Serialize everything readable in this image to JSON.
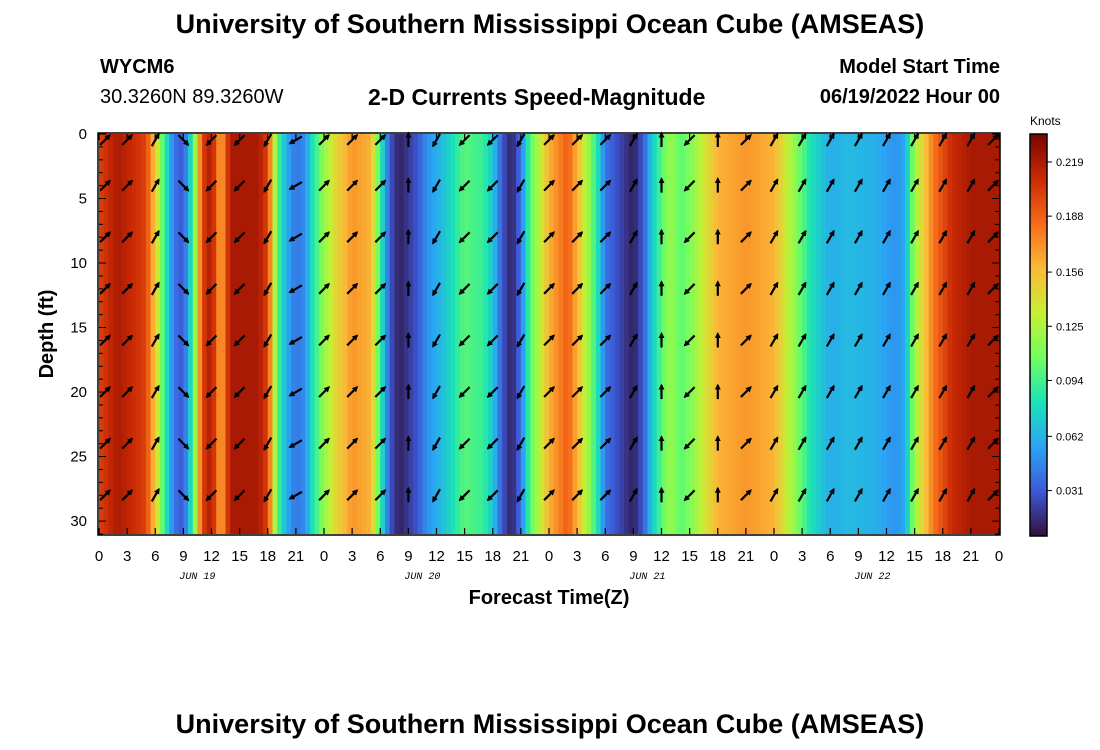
{
  "header": {
    "title": "University of Southern Mississippi Ocean Cube (AMSEAS)",
    "station": "WYCM6",
    "coords": "30.3260N  89.3260W",
    "subtitle": "2-D Currents Speed-Magnitude",
    "model_start_label": "Model Start Time",
    "model_start_value": "06/19/2022 Hour 00"
  },
  "footer": {
    "title": "University of Southern Mississippi Ocean Cube (AMSEAS)"
  },
  "colors": {
    "ramp": [
      "#30123b",
      "#3e58d8",
      "#2ba4f5",
      "#1ae4b6",
      "#72fe5e",
      "#c8ef34",
      "#fbb938",
      "#f66b19",
      "#ca2a04",
      "#7a0403"
    ],
    "arrow": "#000000"
  },
  "chart_data": {
    "type": "heatmap",
    "xlabel": "Forecast Time(Z)",
    "ylabel": "Depth (ft)",
    "x_ticks": [
      "0",
      "3",
      "6",
      "9",
      "12",
      "15",
      "18",
      "21",
      "0",
      "3",
      "6",
      "9",
      "12",
      "15",
      "18",
      "21",
      "0",
      "3",
      "6",
      "9",
      "12",
      "15",
      "18",
      "21",
      "0",
      "3",
      "6",
      "9",
      "12",
      "15",
      "18",
      "21",
      "0"
    ],
    "x_range_hours": [
      0,
      96
    ],
    "day_labels": [
      {
        "label": "JUN 19",
        "hour": 10.5
      },
      {
        "label": "JUN 20",
        "hour": 34.5
      },
      {
        "label": "JUN 21",
        "hour": 58.5
      },
      {
        "label": "JUN 22",
        "hour": 82.5
      }
    ],
    "y_ticks": [
      0,
      5,
      10,
      15,
      20,
      25,
      30
    ],
    "y_range_ft": [
      0,
      31
    ],
    "colorbar": {
      "label": "Knots",
      "range": [
        0.005,
        0.235
      ],
      "ticks": [
        "0.219",
        "0.188",
        "0.156",
        "0.125",
        "0.094",
        "0.062",
        "0.031"
      ]
    },
    "speed_profile_knots": [
      {
        "hour": 0,
        "speed": 0.2
      },
      {
        "hour": 2,
        "speed": 0.22
      },
      {
        "hour": 5,
        "speed": 0.2
      },
      {
        "hour": 6,
        "speed": 0.15
      },
      {
        "hour": 7,
        "speed": 0.09
      },
      {
        "hour": 8,
        "speed": 0.04
      },
      {
        "hour": 9,
        "speed": 0.03
      },
      {
        "hour": 10,
        "speed": 0.09
      },
      {
        "hour": 11,
        "speed": 0.2
      },
      {
        "hour": 12,
        "speed": 0.22
      },
      {
        "hour": 13,
        "speed": 0.16
      },
      {
        "hour": 14,
        "speed": 0.22
      },
      {
        "hour": 17,
        "speed": 0.22
      },
      {
        "hour": 18,
        "speed": 0.2
      },
      {
        "hour": 19,
        "speed": 0.1
      },
      {
        "hour": 20,
        "speed": 0.06
      },
      {
        "hour": 21,
        "speed": 0.04
      },
      {
        "hour": 22,
        "speed": 0.05
      },
      {
        "hour": 23,
        "speed": 0.09
      },
      {
        "hour": 25,
        "speed": 0.14
      },
      {
        "hour": 27,
        "speed": 0.17
      },
      {
        "hour": 29,
        "speed": 0.16
      },
      {
        "hour": 30,
        "speed": 0.09
      },
      {
        "hour": 31,
        "speed": 0.03
      },
      {
        "hour": 32,
        "speed": 0.01
      },
      {
        "hour": 34,
        "speed": 0.03
      },
      {
        "hour": 35,
        "speed": 0.05
      },
      {
        "hour": 37,
        "speed": 0.07
      },
      {
        "hour": 39,
        "speed": 0.1
      },
      {
        "hour": 41,
        "speed": 0.09
      },
      {
        "hour": 42,
        "speed": 0.07
      },
      {
        "hour": 43,
        "speed": 0.03
      },
      {
        "hour": 44,
        "speed": 0.01
      },
      {
        "hour": 45,
        "speed": 0.04
      },
      {
        "hour": 46,
        "speed": 0.1
      },
      {
        "hour": 48,
        "speed": 0.16
      },
      {
        "hour": 50,
        "speed": 0.19
      },
      {
        "hour": 51,
        "speed": 0.16
      },
      {
        "hour": 53,
        "speed": 0.09
      },
      {
        "hour": 54,
        "speed": 0.04
      },
      {
        "hour": 56,
        "speed": 0.02
      },
      {
        "hour": 57,
        "speed": 0.01
      },
      {
        "hour": 58,
        "speed": 0.03
      },
      {
        "hour": 59,
        "speed": 0.07
      },
      {
        "hour": 60,
        "speed": 0.1
      },
      {
        "hour": 61,
        "speed": 0.12
      },
      {
        "hour": 62,
        "speed": 0.1
      },
      {
        "hour": 63,
        "speed": 0.11
      },
      {
        "hour": 66,
        "speed": 0.16
      },
      {
        "hour": 69,
        "speed": 0.17
      },
      {
        "hour": 72,
        "speed": 0.16
      },
      {
        "hour": 74,
        "speed": 0.12
      },
      {
        "hour": 76,
        "speed": 0.08
      },
      {
        "hour": 78,
        "speed": 0.06
      },
      {
        "hour": 80,
        "speed": 0.065
      },
      {
        "hour": 83,
        "speed": 0.06
      },
      {
        "hour": 85,
        "speed": 0.05
      },
      {
        "hour": 86,
        "speed": 0.06
      },
      {
        "hour": 87,
        "speed": 0.12
      },
      {
        "hour": 89,
        "speed": 0.18
      },
      {
        "hour": 91,
        "speed": 0.21
      },
      {
        "hour": 93,
        "speed": 0.22
      },
      {
        "hour": 96,
        "speed": 0.22
      }
    ],
    "arrow_depths_ft": [
      0,
      4,
      8,
      12,
      16,
      20,
      24,
      28
    ],
    "arrow_hours": [
      0,
      3,
      6,
      9,
      12,
      15,
      18,
      21,
      24,
      27,
      30,
      33,
      36,
      39,
      42,
      45,
      48,
      51,
      54,
      57,
      60,
      63,
      66,
      69,
      72,
      75,
      78,
      81,
      84,
      87,
      90,
      93,
      96
    ],
    "arrow_directions_deg": [
      45,
      45,
      30,
      135,
      225,
      225,
      210,
      240,
      45,
      45,
      45,
      0,
      210,
      225,
      225,
      210,
      45,
      45,
      45,
      30,
      0,
      225,
      0,
      45,
      30,
      30,
      30,
      30,
      30,
      30,
      30,
      30,
      45
    ]
  }
}
